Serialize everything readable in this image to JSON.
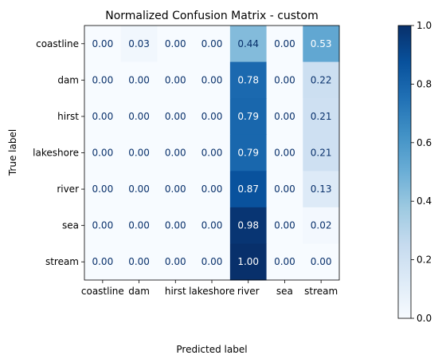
{
  "chart_data": {
    "type": "heatmap",
    "title": "Normalized Confusion Matrix - custom",
    "xlabel": "Predicted label",
    "ylabel": "True label",
    "x_categories": [
      "coastline",
      "dam",
      "hirst",
      "lakeshore",
      "river",
      "sea",
      "stream"
    ],
    "y_categories": [
      "coastline",
      "dam",
      "hirst",
      "lakeshore",
      "river",
      "sea",
      "stream"
    ],
    "values": [
      [
        0.0,
        0.03,
        0.0,
        0.0,
        0.44,
        0.0,
        0.53
      ],
      [
        0.0,
        0.0,
        0.0,
        0.0,
        0.78,
        0.0,
        0.22
      ],
      [
        0.0,
        0.0,
        0.0,
        0.0,
        0.79,
        0.0,
        0.21
      ],
      [
        0.0,
        0.0,
        0.0,
        0.0,
        0.79,
        0.0,
        0.21
      ],
      [
        0.0,
        0.0,
        0.0,
        0.0,
        0.87,
        0.0,
        0.13
      ],
      [
        0.0,
        0.0,
        0.0,
        0.0,
        0.98,
        0.0,
        0.02
      ],
      [
        0.0,
        0.0,
        0.0,
        0.0,
        1.0,
        0.0,
        0.0
      ]
    ],
    "value_format_decimals": 2,
    "colormap": "Blues",
    "colorbar": {
      "range": [
        0.0,
        1.0
      ],
      "ticks": [
        0.0,
        0.2,
        0.4,
        0.6,
        0.8,
        1.0
      ],
      "tick_labels": [
        "0.0",
        "0.2",
        "0.4",
        "0.6",
        "0.8",
        "1.0"
      ]
    },
    "grid": false
  }
}
